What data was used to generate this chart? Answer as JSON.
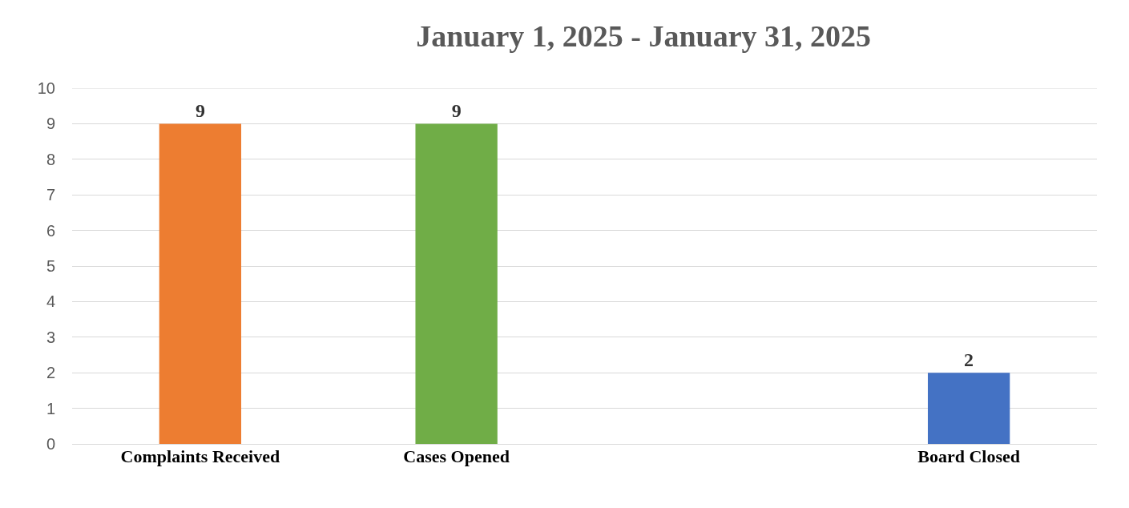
{
  "chart_data": {
    "type": "bar",
    "title": "January 1, 2025 - January 31, 2025",
    "categories": [
      "Complaints Received",
      "Cases Opened",
      null,
      "Board Closed"
    ],
    "values": [
      9,
      9,
      null,
      2
    ],
    "colors": [
      "#ed7d31",
      "#70ad47",
      null,
      "#4472c4"
    ],
    "value_labels": [
      "9",
      "9",
      null,
      "2"
    ],
    "ylim": [
      0,
      10
    ],
    "yticks": [
      0,
      1,
      2,
      3,
      4,
      5,
      6,
      7,
      8,
      9,
      10
    ],
    "grid": "y"
  }
}
